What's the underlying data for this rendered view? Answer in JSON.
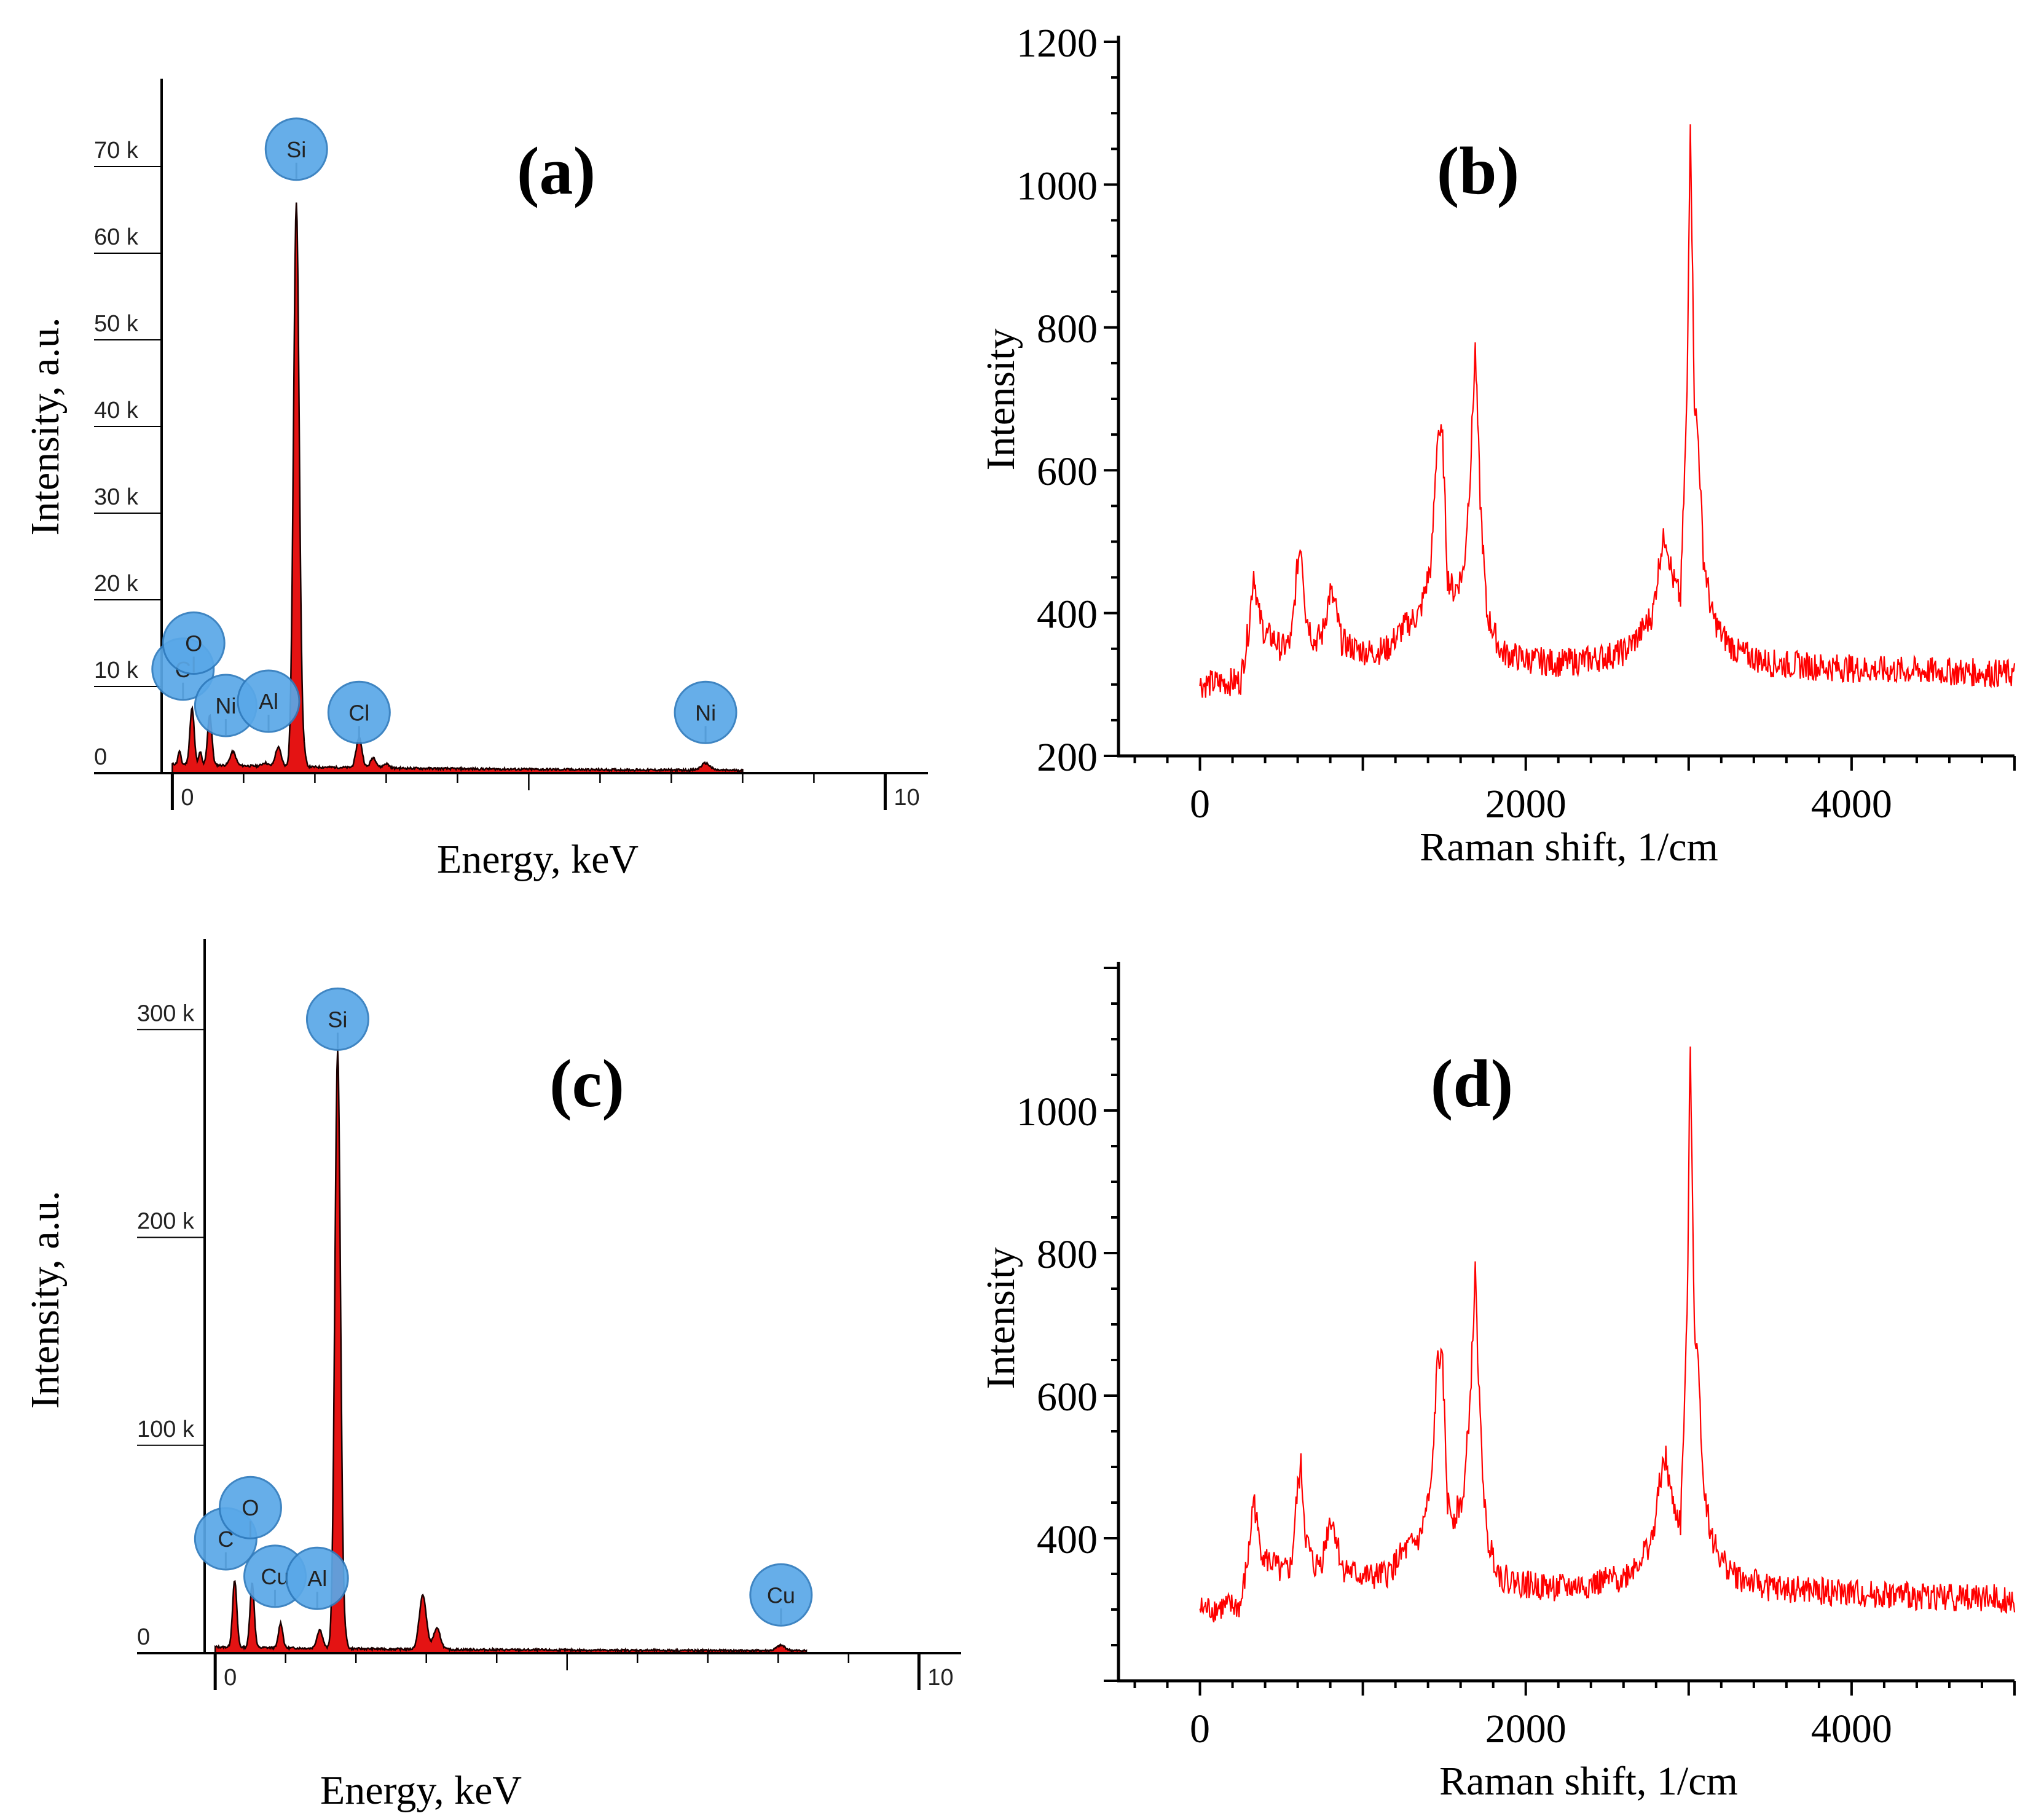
{
  "chart_data": [
    {
      "panel": "(a)",
      "type": "area",
      "xlabel": "Energy, keV",
      "ylabel": "Intensity, a.u.",
      "xlim": [
        -0.15,
        10.6
      ],
      "ylim": [
        0,
        80000
      ],
      "x_ticks": [
        {
          "value": 0,
          "label": "0"
        },
        {
          "value": 10,
          "label": "10"
        }
      ],
      "y_ticks": [
        {
          "value": 0,
          "label": "0"
        },
        {
          "value": 10000,
          "label": "10 k"
        },
        {
          "value": 20000,
          "label": "20 k"
        },
        {
          "value": 30000,
          "label": "30 k"
        },
        {
          "value": 40000,
          "label": "40 k"
        },
        {
          "value": 50000,
          "label": "50 k"
        },
        {
          "value": 60000,
          "label": "60 k"
        },
        {
          "value": 70000,
          "label": "70 k"
        }
      ],
      "series": [
        {
          "name": "EDS spectrum",
          "baseline": 800,
          "peaks": [
            {
              "x": 0.1,
              "y": 1500,
              "w": 0.02
            },
            {
              "x": 0.277,
              "y": 6500,
              "w": 0.03
            },
            {
              "x": 0.392,
              "y": 1500,
              "w": 0.02
            },
            {
              "x": 0.525,
              "y": 5800,
              "w": 0.03
            },
            {
              "x": 0.85,
              "y": 1600,
              "w": 0.04
            },
            {
              "x": 1.3,
              "y": 400,
              "w": 0.04
            },
            {
              "x": 1.486,
              "y": 2200,
              "w": 0.04
            },
            {
              "x": 1.74,
              "y": 65000,
              "w": 0.04
            },
            {
              "x": 1.84,
              "y": 1500,
              "w": 0.03
            },
            {
              "x": 2.62,
              "y": 3500,
              "w": 0.04
            },
            {
              "x": 2.82,
              "y": 1200,
              "w": 0.04
            },
            {
              "x": 3.0,
              "y": 500,
              "w": 0.04
            },
            {
              "x": 7.48,
              "y": 800,
              "w": 0.06
            }
          ]
        }
      ],
      "element_labels": [
        {
          "label": "C",
          "x": 0.15,
          "y": 12000
        },
        {
          "label": "O",
          "x": 0.3,
          "y": 15000
        },
        {
          "label": "Ni",
          "x": 0.75,
          "y": 7800
        },
        {
          "label": "Al",
          "x": 1.35,
          "y": 8300
        },
        {
          "label": "Cl",
          "x": 2.62,
          "y": 7000
        },
        {
          "label": "Ni",
          "x": 7.48,
          "y": 7000
        },
        {
          "label": "Si",
          "x": 1.74,
          "y": 72000
        }
      ]
    },
    {
      "panel": "(b)",
      "type": "line",
      "xlabel": "Raman shift, 1/cm",
      "ylabel": "Intensity",
      "xlim": [
        -500,
        5000
      ],
      "ylim": [
        200,
        1200
      ],
      "x_ticks": [
        {
          "value": 0,
          "label": "0"
        },
        {
          "value": 2000,
          "label": "2000"
        },
        {
          "value": 4000,
          "label": "4000"
        }
      ],
      "y_ticks": [
        {
          "value": 200,
          "label": "200"
        },
        {
          "value": 400,
          "label": "400"
        },
        {
          "value": 600,
          "label": "600"
        },
        {
          "value": 800,
          "label": "800"
        },
        {
          "value": 1000,
          "label": "1000"
        },
        {
          "value": 1200,
          "label": "1200"
        }
      ],
      "series": [
        {
          "name": "Raman",
          "color": "#ff0000",
          "x": [
            0,
            100,
            250,
            300,
            330,
            360,
            400,
            450,
            500,
            560,
            600,
            620,
            650,
            700,
            750,
            800,
            830,
            870,
            950,
            1050,
            1150,
            1250,
            1350,
            1420,
            1460,
            1490,
            1520,
            1560,
            1620,
            1660,
            1690,
            1720,
            1760,
            1850,
            2000,
            2200,
            2400,
            2600,
            2700,
            2780,
            2830,
            2860,
            2900,
            2950,
            2990,
            3010,
            3035,
            3060,
            3090,
            3140,
            3200,
            3300,
            3500,
            3800,
            4200,
            4600,
            5000
          ],
          "y": [
            300,
            302,
            305,
            380,
            460,
            400,
            370,
            365,
            350,
            360,
            470,
            500,
            400,
            360,
            370,
            430,
            410,
            360,
            350,
            345,
            350,
            380,
            400,
            470,
            660,
            640,
            450,
            430,
            460,
            600,
            770,
            560,
            400,
            345,
            335,
            330,
            335,
            345,
            370,
            400,
            490,
            510,
            450,
            420,
            700,
            1100,
            700,
            640,
            480,
            400,
            370,
            345,
            330,
            325,
            320,
            318,
            315
          ]
        }
      ]
    },
    {
      "panel": "(c)",
      "type": "area",
      "xlabel": "Energy, keV",
      "ylabel": "Intensity, a.u.",
      "xlim": [
        -0.15,
        10.6
      ],
      "ylim": [
        0,
        340000
      ],
      "x_ticks": [
        {
          "value": 0,
          "label": "0"
        },
        {
          "value": 10,
          "label": "10"
        }
      ],
      "y_ticks": [
        {
          "value": 0,
          "label": "0"
        },
        {
          "value": 100000,
          "label": "100 k"
        },
        {
          "value": 200000,
          "label": "200 k"
        },
        {
          "value": 300000,
          "label": "300 k"
        }
      ],
      "series": [
        {
          "name": "EDS spectrum",
          "baseline": 2000,
          "peaks": [
            {
              "x": 0.277,
              "y": 32000,
              "w": 0.03
            },
            {
              "x": 0.525,
              "y": 31000,
              "w": 0.03
            },
            {
              "x": 0.93,
              "y": 12000,
              "w": 0.03
            },
            {
              "x": 1.486,
              "y": 9000,
              "w": 0.04
            },
            {
              "x": 1.74,
              "y": 288000,
              "w": 0.04
            },
            {
              "x": 1.84,
              "y": 5000,
              "w": 0.03
            },
            {
              "x": 2.95,
              "y": 26000,
              "w": 0.05
            },
            {
              "x": 3.15,
              "y": 10000,
              "w": 0.05
            },
            {
              "x": 8.04,
              "y": 2500,
              "w": 0.06
            }
          ]
        }
      ],
      "element_labels": [
        {
          "label": "C",
          "x": 0.15,
          "y": 55000
        },
        {
          "label": "O",
          "x": 0.5,
          "y": 70000
        },
        {
          "label": "Cu",
          "x": 0.85,
          "y": 37000
        },
        {
          "label": "Al",
          "x": 1.45,
          "y": 36000
        },
        {
          "label": "Cu",
          "x": 8.04,
          "y": 28000
        },
        {
          "label": "Si",
          "x": 1.74,
          "y": 305000
        }
      ]
    },
    {
      "panel": "(d)",
      "type": "line",
      "xlabel": "Raman shift, 1/cm",
      "ylabel": "Intensity",
      "xlim": [
        -500,
        5000
      ],
      "ylim": [
        200,
        1200
      ],
      "x_ticks": [
        {
          "value": 0,
          "label": "0"
        },
        {
          "value": 2000,
          "label": "2000"
        },
        {
          "value": 4000,
          "label": "4000"
        }
      ],
      "y_ticks": [
        {
          "value": 400,
          "label": "400"
        },
        {
          "value": 600,
          "label": "600"
        },
        {
          "value": 800,
          "label": "800"
        },
        {
          "value": 1000,
          "label": "1000"
        }
      ],
      "series": [
        {
          "name": "Raman",
          "color": "#ff0000",
          "x": [
            0,
            100,
            250,
            300,
            330,
            360,
            400,
            450,
            500,
            560,
            600,
            620,
            650,
            700,
            750,
            800,
            830,
            870,
            950,
            1050,
            1150,
            1250,
            1350,
            1420,
            1460,
            1490,
            1520,
            1560,
            1620,
            1660,
            1690,
            1720,
            1760,
            1850,
            2000,
            2200,
            2400,
            2600,
            2700,
            2780,
            2830,
            2860,
            2900,
            2950,
            2990,
            3010,
            3035,
            3060,
            3090,
            3140,
            3200,
            3300,
            3500,
            3800,
            4200,
            4600,
            5000
          ],
          "y": [
            300,
            302,
            305,
            380,
            460,
            400,
            370,
            365,
            350,
            360,
            470,
            500,
            400,
            360,
            370,
            430,
            410,
            360,
            350,
            345,
            350,
            380,
            400,
            470,
            660,
            640,
            450,
            430,
            460,
            600,
            770,
            560,
            400,
            345,
            335,
            330,
            335,
            345,
            370,
            400,
            490,
            510,
            450,
            420,
            700,
            1100,
            700,
            640,
            480,
            400,
            370,
            345,
            330,
            325,
            320,
            318,
            315
          ]
        }
      ]
    }
  ]
}
